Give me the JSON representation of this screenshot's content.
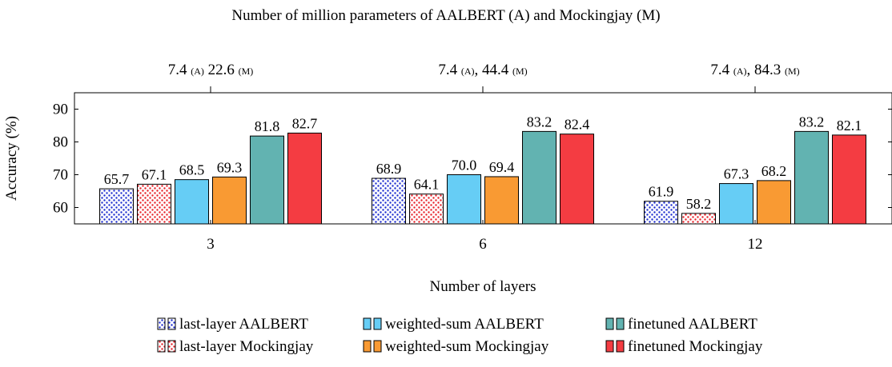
{
  "chart_data": {
    "type": "bar",
    "top_title": "Number of million parameters of AALBERT (A) and Mockingjay (M)",
    "ylabel": "Accuracy (%)",
    "xlabel": "Number of layers",
    "ylim": [
      55,
      95
    ],
    "yticks": [
      60,
      70,
      80,
      90
    ],
    "grid": false,
    "legend_position": "bottom",
    "categories": [
      "3",
      "6",
      "12"
    ],
    "top_axis_labels": [
      {
        "a_value": "7.4",
        "a_tag": "(A)",
        "sep": " ",
        "m_value": "22.6",
        "m_tag": "(M)"
      },
      {
        "a_value": "7.4",
        "a_tag": "(A)",
        "sep": ", ",
        "m_value": "44.4",
        "m_tag": "(M)"
      },
      {
        "a_value": "7.4",
        "a_tag": "(A)",
        "sep": ", ",
        "m_value": "84.3",
        "m_tag": "(M)"
      }
    ],
    "series": [
      {
        "name": "last-layer AALBERT",
        "values": [
          65.7,
          68.9,
          61.9
        ],
        "labels": [
          "65.7",
          "68.9",
          "61.9"
        ],
        "color": "#1f2fd0",
        "pattern": "dots"
      },
      {
        "name": "last-layer Mockingjay",
        "values": [
          67.1,
          64.1,
          58.2
        ],
        "labels": [
          "67.1",
          "64.1",
          "58.2"
        ],
        "color": "#e8232a",
        "pattern": "dots"
      },
      {
        "name": "weighted-sum AALBERT",
        "values": [
          68.5,
          70.0,
          67.3
        ],
        "labels": [
          "68.5",
          "70.0",
          "67.3"
        ],
        "color": "#66cdf5",
        "pattern": "solid"
      },
      {
        "name": "weighted-sum Mockingjay",
        "values": [
          69.3,
          69.4,
          68.2
        ],
        "labels": [
          "69.3",
          "69.4",
          "68.2"
        ],
        "color": "#f99a33",
        "pattern": "solid"
      },
      {
        "name": "finetuned AALBERT",
        "values": [
          81.8,
          83.2,
          83.2
        ],
        "labels": [
          "81.8",
          "83.2",
          "83.2"
        ],
        "color": "#62b3b1",
        "pattern": "solid"
      },
      {
        "name": "finetuned Mockingjay",
        "values": [
          82.7,
          82.4,
          82.1
        ],
        "labels": [
          "82.7",
          "82.4",
          "82.1"
        ],
        "color": "#f43c42",
        "pattern": "solid"
      }
    ]
  }
}
